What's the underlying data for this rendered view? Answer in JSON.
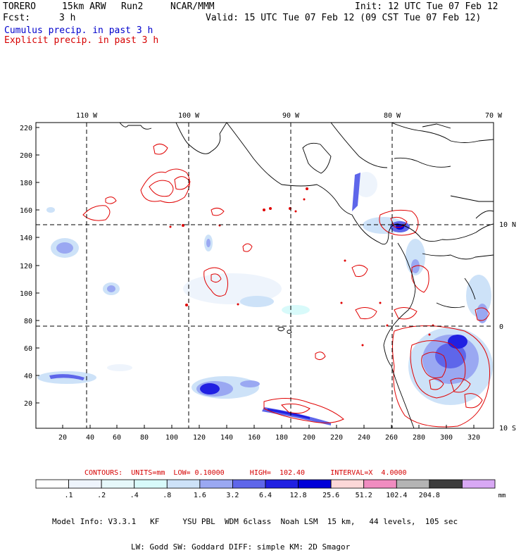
{
  "header": {
    "model_name": "TORERO",
    "resolution": "15km ARW",
    "run": "Run2",
    "org": "NCAR/MMM",
    "init": "Init: 12 UTC Tue 07 Feb 12",
    "fcst_label": "Fcst:",
    "fcst_hours": "3 h",
    "valid": "Valid: 15 UTC Tue 07 Feb 12 (09 CST Tue 07 Feb 12)",
    "cumulus": "Cumulus precip. in past 3 h",
    "explicit": "Explicit precip. in past 3 h"
  },
  "colors": {
    "cumulus_text": "#0000cc",
    "explicit_text": "#d60000",
    "explicit_contour": "#e00000",
    "grid_line": "#000000"
  },
  "map": {
    "lon_labels": [
      "110 W",
      "100 W",
      "90 W",
      "80 W",
      "70 W"
    ],
    "lat_labels": [
      "10 N",
      "0",
      "10 S"
    ],
    "y_ticks": [
      "220",
      "200",
      "180",
      "160",
      "140",
      "120",
      "100",
      "80",
      "60",
      "40",
      "20"
    ],
    "x_ticks": [
      "20",
      "40",
      "60",
      "80",
      "100",
      "120",
      "140",
      "160",
      "180",
      "200",
      "220",
      "240",
      "260",
      "280",
      "300",
      "320"
    ]
  },
  "legend": {
    "contours_text": "CONTOURS:  UNITS=mm  LOW= 0.10000      HIGH=  102.40      INTERVAL=X  4.0000",
    "labels": [
      ".1",
      ".2",
      ".4",
      ".8",
      "1.6",
      "3.2",
      "6.4",
      "12.8",
      "25.6",
      "51.2",
      "102.4",
      "204.8"
    ],
    "units": "mm",
    "colors": [
      "#ffffff",
      "#eef4fc",
      "#e6f8fa",
      "#d8fafa",
      "#cde2f8",
      "#9aa8f2",
      "#5e66ea",
      "#2020e2",
      "#0000d8",
      "#fcd8d8",
      "#f08cc0",
      "#b4b4b4",
      "#3c3c3c",
      "#d8a8f4"
    ]
  },
  "model_info": {
    "line1": "Model Info: V3.3.1   KF     YSU PBL  WDM 6class  Noah LSM  15 km,   44 levels,  105 sec",
    "line2": "LW: Godd SW: Goddard DIFF: simple KM: 2D Smagor"
  }
}
